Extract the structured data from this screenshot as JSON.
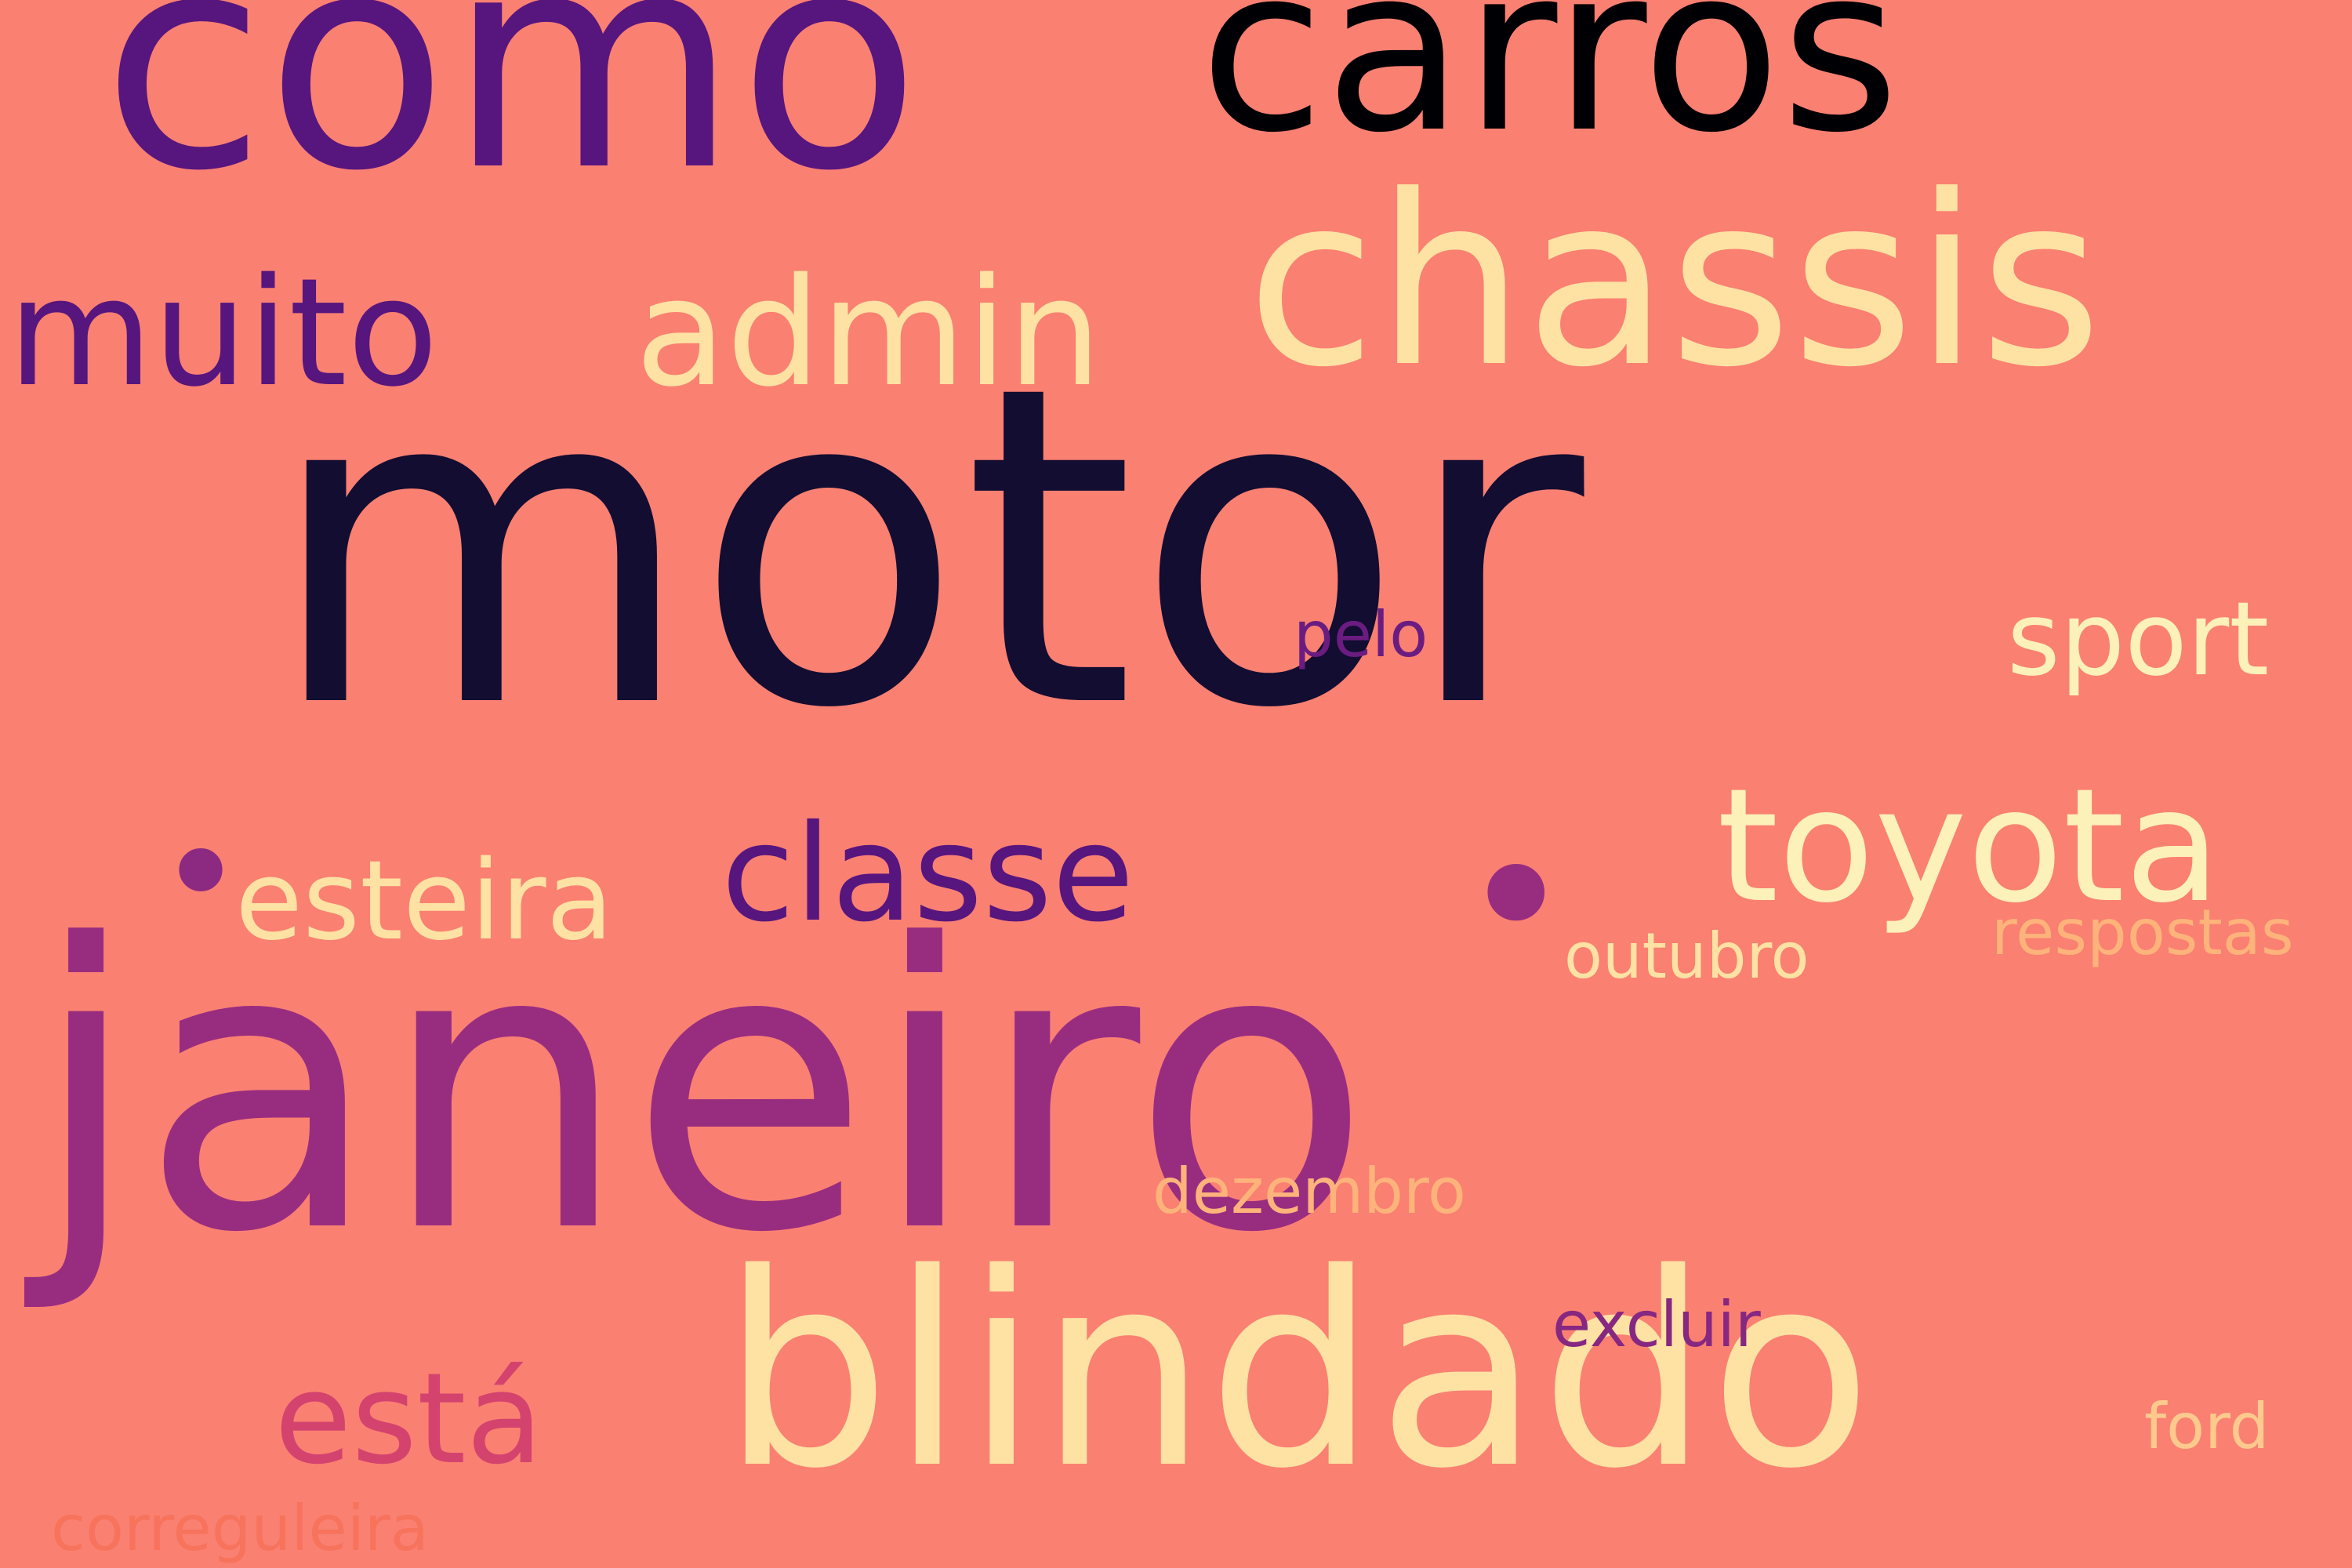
{
  "background": "#fa8072",
  "words": [
    {
      "id": "motor",
      "text": "motor",
      "color": "#120d31"
    },
    {
      "id": "janeiro",
      "text": "janeiro",
      "color": "#982d80"
    },
    {
      "id": "como",
      "text": "como",
      "color": "#57157e"
    },
    {
      "id": "carros",
      "text": "carros",
      "color": "#000004"
    },
    {
      "id": "chassis",
      "text": "chassis",
      "color": "#fde2a3"
    },
    {
      "id": "blindado",
      "text": "blindado",
      "color": "#fde2a3"
    },
    {
      "id": "muito",
      "text": "muito",
      "color": "#57157e"
    },
    {
      "id": "admin",
      "text": "admin",
      "color": "#fde2a3"
    },
    {
      "id": "toyota",
      "text": "toyota",
      "color": "#fcf1b8"
    },
    {
      "id": "classe",
      "text": "classe",
      "color": "#57157e"
    },
    {
      "id": "esteira",
      "text": "esteira",
      "color": "#fde2a3"
    },
    {
      "id": "está",
      "text": "está",
      "color": "#d3436e"
    },
    {
      "id": "sport",
      "text": "sport",
      "color": "#fcf1b8"
    },
    {
      "id": "pelo",
      "text": "pelo",
      "color": "#6a1c81"
    },
    {
      "id": "outubro",
      "text": "outubro",
      "color": "#fde2a3"
    },
    {
      "id": "respostas",
      "text": "respostas",
      "color": "#feb37b"
    },
    {
      "id": "dezembro",
      "text": "dezembro",
      "color": "#feb37b"
    },
    {
      "id": "excluir",
      "text": "excluir",
      "color": "#862781"
    },
    {
      "id": "ford",
      "text": "ford",
      "color": "#fec98d"
    },
    {
      "id": "correguleira",
      "text": "correguleira",
      "color": "#f7735c"
    },
    {
      "id": "dot1",
      "text": "•",
      "color": "#8c2981"
    },
    {
      "id": "dot2",
      "text": "•",
      "color": "#982d80"
    }
  ]
}
